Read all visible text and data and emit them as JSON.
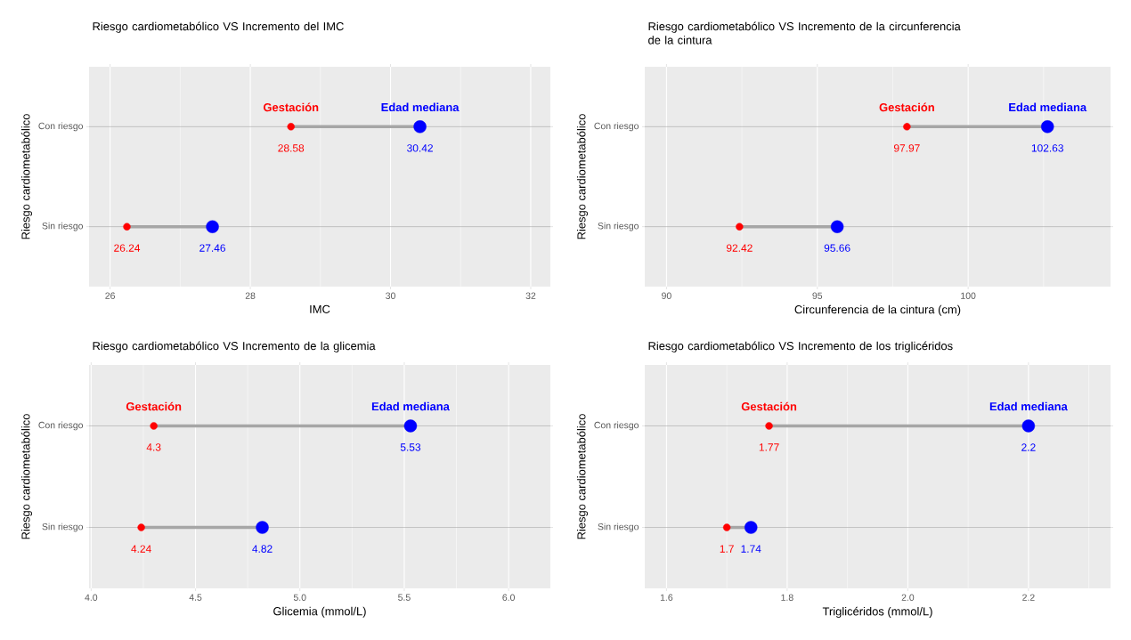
{
  "chart_data": [
    {
      "type": "scatter",
      "title": "Riesgo cardiometabólico VS Incremento del IMC",
      "xlabel": "IMC",
      "ylabel": "Riesgo cardiometabólico",
      "categories": [
        "Con riesgo",
        "Sin riesgo"
      ],
      "orientation": "horizontal",
      "xlim": [
        25.7,
        32.28
      ],
      "xticks": [
        26,
        28,
        30,
        32
      ],
      "grid": true,
      "data_labels": true,
      "series": [
        {
          "name": "Gestación",
          "color": "#ff0000",
          "values": [
            28.58,
            26.24
          ]
        },
        {
          "name": "Edad mediana",
          "color": "#0000ff",
          "values": [
            30.42,
            27.46
          ]
        }
      ]
    },
    {
      "type": "scatter",
      "title": "Riesgo cardiometabólico VS Incremento de la circunferencia de la cintura",
      "xlabel": "Circunferencia de la cintura (cm)",
      "ylabel": "Riesgo cardiometabólico",
      "categories": [
        "Con riesgo",
        "Sin riesgo"
      ],
      "orientation": "horizontal",
      "xlim": [
        89.28,
        104.72
      ],
      "xticks": [
        90,
        95,
        100
      ],
      "grid": true,
      "data_labels": true,
      "series": [
        {
          "name": "Gestación",
          "color": "#ff0000",
          "values": [
            97.97,
            92.42
          ]
        },
        {
          "name": "Edad mediana",
          "color": "#0000ff",
          "values": [
            102.63,
            95.66
          ]
        }
      ]
    },
    {
      "type": "scatter",
      "title": "Riesgo cardiometabólico VS Incremento de la glicemia",
      "xlabel": "Glicemia (mmol/L)",
      "ylabel": "Riesgo cardiometabólico",
      "categories": [
        "Con riesgo",
        "Sin riesgo"
      ],
      "orientation": "horizontal",
      "xlim": [
        3.99,
        6.2
      ],
      "xticks": [
        {
          "value": 4,
          "label": "4.0"
        },
        4.5,
        {
          "value": 5,
          "label": "5.0"
        },
        5.5,
        {
          "value": 6,
          "label": "6.0"
        }
      ],
      "grid": true,
      "data_labels": true,
      "series": [
        {
          "name": "Gestación",
          "color": "#ff0000",
          "values": [
            4.3,
            4.24
          ]
        },
        {
          "name": "Edad mediana",
          "color": "#0000ff",
          "values": [
            5.53,
            4.82
          ]
        }
      ]
    },
    {
      "type": "scatter",
      "title": "Riesgo cardiometabólico VS Incremento de los triglicéridos",
      "xlabel": "Triglicéridos (mmol/L)",
      "ylabel": "Riesgo cardiometabólico",
      "categories": [
        "Con riesgo",
        "Sin riesgo"
      ],
      "orientation": "horizontal",
      "xlim": [
        1.564,
        2.336
      ],
      "xticks": [
        1.6,
        1.8,
        {
          "value": 2,
          "label": "2.0"
        },
        2.2
      ],
      "grid": true,
      "data_labels": true,
      "series": [
        {
          "name": "Gestación",
          "color": "#ff0000",
          "values": [
            1.77,
            1.7
          ]
        },
        {
          "name": "Edad mediana",
          "color": "#0000ff",
          "values": [
            2.2,
            1.74
          ]
        }
      ]
    }
  ]
}
